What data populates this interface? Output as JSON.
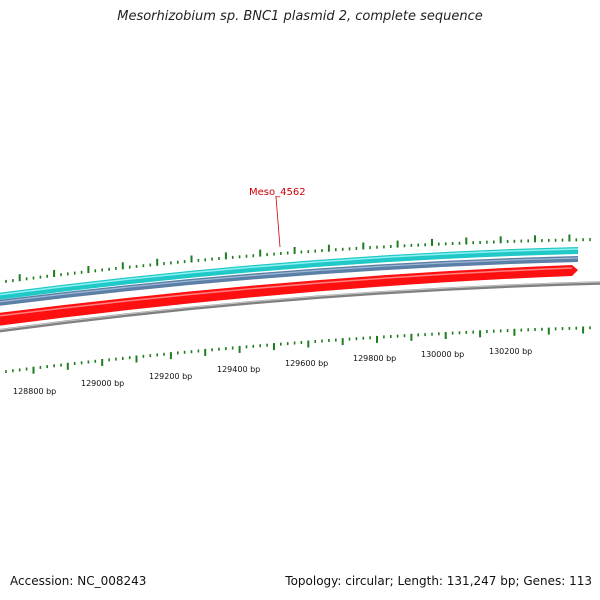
{
  "title": "Mesorhizobium sp. BNC1 plasmid 2, complete sequence",
  "footer": {
    "accession": "Accession: NC_008243",
    "summary": "Topology: circular; Length: 131,247 bp; Genes: 113"
  },
  "gene_label": {
    "text": "Meso_4562",
    "color": "#cc0000"
  },
  "tracks": [
    {
      "name": "cyan-track",
      "color": "#20c8c8"
    },
    {
      "name": "blue-track",
      "color": "#5b7fa6"
    },
    {
      "name": "red-track",
      "color": "#ff0000"
    },
    {
      "name": "gray-track",
      "color": "#808080"
    }
  ],
  "tick_color": "#1e7d1e",
  "tick_labels": [
    "128800 bp",
    "129000 bp",
    "129200 bp",
    "129400 bp",
    "129600 bp",
    "129800 bp",
    "130000 bp",
    "130200 bp"
  ]
}
